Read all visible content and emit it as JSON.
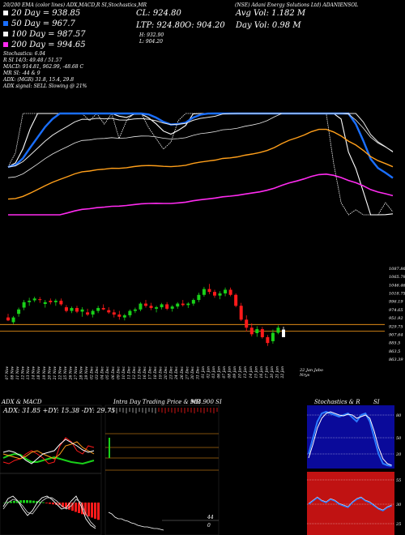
{
  "header": {
    "chart_title": "(NSE) Adani Energy Solutions Ltd) ADANIENSOL",
    "indicators_line": "20/200 EMA (color lines) ADX,MACD,R SI,Stochastics,MR",
    "cl": "CL: 924.80",
    "ltp": "LTP: 924.80",
    "open": "O: 904.20",
    "high": "H: 932.90",
    "low": "L: 904.20",
    "avg_vol": "Avg Vol: 1.182  M",
    "day_vol": "Day Vol: 0.98  M"
  },
  "legend": [
    {
      "label": "20   Day = 938.85",
      "color": "#ffffff"
    },
    {
      "label": "50   Day = 967.7",
      "color": "#1a6fff"
    },
    {
      "label": "100   Day = 987.57",
      "color": "#f5f5f5"
    },
    {
      "label": "200   Day = 994.65",
      "color": "#ff2bf0"
    }
  ],
  "stats": [
    "Stochastics: 6.04",
    "R              SI 14/3: 49.48 / 51.57",
    "MACD: 914.81, 962.99, -48.68  C",
    "MR                  SI: -44  & 9",
    "ADX:                   (MGR) 31.8, 15.4, 29.8",
    "ADX  signal: SELL  Slowing @ 21%"
  ],
  "price_chart": {
    "type": "candlestick",
    "y_labels": [
      "1087.86",
      "1065.79",
      "1046.46",
      "1018.75",
      "996.19",
      "974.65",
      "951.92",
      "929.75",
      "907.64",
      "885.5",
      "863.5",
      "863.39"
    ],
    "ylim": [
      855,
      1095
    ],
    "x_labels": [
      "07 Nov",
      "08 Nov",
      "11 Nov",
      "12 Nov",
      "13 Nov",
      "14 Nov",
      "18 Nov",
      "19 Nov",
      "20 Nov",
      "21 Nov",
      "22 Nov",
      "25 Nov",
      "26 Nov",
      "27 Nov",
      "28 Nov",
      "29 Nov",
      "02 Dec",
      "03 Dec",
      "04 Dec",
      "05 Dec",
      "06 Dec",
      "09 Dec",
      "10 Dec",
      "11 Dec",
      "12 Dec",
      "13 Dec",
      "16 Dec",
      "17 Dec",
      "18 Dec",
      "19 Dec",
      "20 Dec",
      "23 Dec",
      "24 Dec",
      "26 Dec",
      "27 Dec",
      "30 Dec",
      "31 Dec",
      "01 Jan",
      "02 Jan",
      "03 Jan",
      "06 Jan",
      "07 Jan",
      "08 Jan",
      "09 Jan",
      "10 Jan",
      "13 Jan",
      "14 Jan",
      "15 Jan",
      "16 Jan",
      "17 Jan",
      "20 Jan",
      "21 Jan",
      "22 Jan"
    ],
    "footer_label": "22 Jan Jabo Nrys",
    "candles": [
      {
        "o": 958,
        "h": 968,
        "l": 948,
        "c": 950
      },
      {
        "o": 945,
        "h": 962,
        "l": 940,
        "c": 958
      },
      {
        "o": 968,
        "h": 985,
        "l": 960,
        "c": 980
      },
      {
        "o": 985,
        "h": 1006,
        "l": 978,
        "c": 1000
      },
      {
        "o": 1000,
        "h": 1012,
        "l": 990,
        "c": 1004
      },
      {
        "o": 1005,
        "h": 1015,
        "l": 1000,
        "c": 1010
      },
      {
        "o": 1008,
        "h": 1014,
        "l": 998,
        "c": 1006
      },
      {
        "o": 995,
        "h": 1006,
        "l": 985,
        "c": 1000
      },
      {
        "o": 1004,
        "h": 1010,
        "l": 994,
        "c": 1000
      },
      {
        "o": 1000,
        "h": 1009,
        "l": 990,
        "c": 1004
      },
      {
        "o": 1004,
        "h": 1010,
        "l": 990,
        "c": 994
      },
      {
        "o": 986,
        "h": 992,
        "l": 972,
        "c": 976
      },
      {
        "o": 976,
        "h": 988,
        "l": 970,
        "c": 984
      },
      {
        "o": 984,
        "h": 990,
        "l": 970,
        "c": 974
      },
      {
        "o": 974,
        "h": 986,
        "l": 960,
        "c": 980
      },
      {
        "o": 972,
        "h": 982,
        "l": 962,
        "c": 966
      },
      {
        "o": 966,
        "h": 980,
        "l": 958,
        "c": 976
      },
      {
        "o": 976,
        "h": 990,
        "l": 970,
        "c": 984
      },
      {
        "o": 984,
        "h": 994,
        "l": 978,
        "c": 980
      },
      {
        "o": 978,
        "h": 986,
        "l": 968,
        "c": 972
      },
      {
        "o": 972,
        "h": 980,
        "l": 958,
        "c": 966
      },
      {
        "o": 966,
        "h": 976,
        "l": 952,
        "c": 960
      },
      {
        "o": 958,
        "h": 968,
        "l": 950,
        "c": 964
      },
      {
        "o": 964,
        "h": 980,
        "l": 958,
        "c": 976
      },
      {
        "o": 976,
        "h": 985,
        "l": 970,
        "c": 980
      },
      {
        "o": 980,
        "h": 1000,
        "l": 975,
        "c": 996
      },
      {
        "o": 996,
        "h": 1006,
        "l": 985,
        "c": 990
      },
      {
        "o": 990,
        "h": 998,
        "l": 978,
        "c": 984
      },
      {
        "o": 982,
        "h": 990,
        "l": 972,
        "c": 986
      },
      {
        "o": 986,
        "h": 998,
        "l": 980,
        "c": 994
      },
      {
        "o": 994,
        "h": 1000,
        "l": 978,
        "c": 982
      },
      {
        "o": 982,
        "h": 992,
        "l": 974,
        "c": 988
      },
      {
        "o": 988,
        "h": 1000,
        "l": 982,
        "c": 996
      },
      {
        "o": 996,
        "h": 1006,
        "l": 988,
        "c": 992
      },
      {
        "o": 992,
        "h": 1000,
        "l": 984,
        "c": 996
      },
      {
        "o": 996,
        "h": 1010,
        "l": 990,
        "c": 1006
      },
      {
        "o": 1006,
        "h": 1026,
        "l": 1000,
        "c": 1020
      },
      {
        "o": 1020,
        "h": 1042,
        "l": 1015,
        "c": 1036
      },
      {
        "o": 1036,
        "h": 1050,
        "l": 1022,
        "c": 1028
      },
      {
        "o": 1028,
        "h": 1034,
        "l": 1012,
        "c": 1018
      },
      {
        "o": 1018,
        "h": 1030,
        "l": 1008,
        "c": 1024
      },
      {
        "o": 1024,
        "h": 1040,
        "l": 1016,
        "c": 1034
      },
      {
        "o": 1034,
        "h": 1040,
        "l": 1016,
        "c": 1020
      },
      {
        "o": 1020,
        "h": 1024,
        "l": 986,
        "c": 990
      },
      {
        "o": 990,
        "h": 998,
        "l": 948,
        "c": 952
      },
      {
        "o": 952,
        "h": 964,
        "l": 920,
        "c": 930
      },
      {
        "o": 930,
        "h": 942,
        "l": 906,
        "c": 912
      },
      {
        "o": 915,
        "h": 934,
        "l": 905,
        "c": 926
      },
      {
        "o": 926,
        "h": 932,
        "l": 900,
        "c": 904
      },
      {
        "o": 904,
        "h": 910,
        "l": 880,
        "c": 888
      },
      {
        "o": 893,
        "h": 925,
        "l": 886,
        "c": 916
      },
      {
        "o": 916,
        "h": 936,
        "l": 912,
        "c": 930
      },
      {
        "o": 904.2,
        "h": 932.9,
        "l": 904.2,
        "c": 924.8
      }
    ]
  },
  "panels": {
    "adx_macd": {
      "title": "ADX  & MACD",
      "adx_label": "ADX: 31.85 +DY: 15.38 -DY: 29.75"
    },
    "intraday": {
      "title": "Intra Day Trading Price  & MR",
      "value_label": "983.900 SI",
      "bottom_labels": [
        "44",
        "0"
      ]
    },
    "stoch_rsi": {
      "title": "Stochastics & R",
      "suffix": "SI",
      "stoch_ticks": [
        "80",
        "50",
        "20"
      ],
      "rsi_ticks": [
        "55",
        "30",
        "25"
      ]
    }
  }
}
